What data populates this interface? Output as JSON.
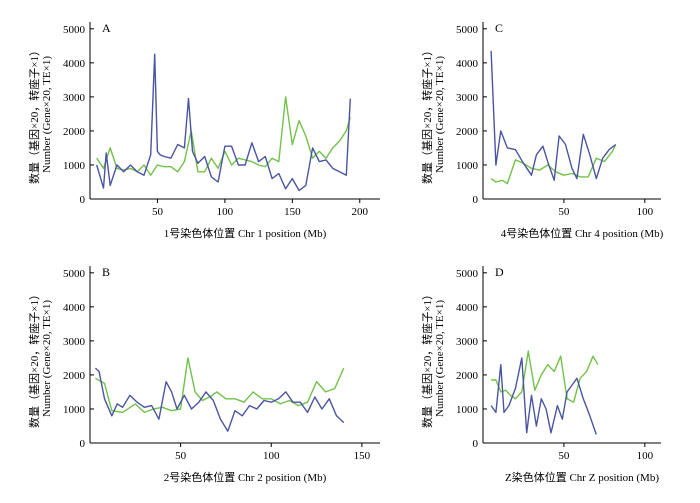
{
  "colors": {
    "genes": "#4a55a2",
    "te": "#72c14a",
    "axis": "#000000"
  },
  "chart_data": [
    {
      "type": "line",
      "panel": "A",
      "xlabel": "1号染色体位置 Chr 1 position (Mb)",
      "ylabel_lines": [
        "数量（基因×20，转座子×1）",
        "Number (Gene×20, TE×1)"
      ],
      "xlim": [
        0,
        215
      ],
      "ylim": [
        0,
        5200
      ],
      "xticks": [
        50,
        100,
        150,
        200
      ],
      "yticks": [
        0,
        1000,
        2000,
        3000,
        4000,
        5000
      ],
      "series": [
        {
          "key": "genes",
          "x": [
            5,
            10,
            12,
            15,
            20,
            25,
            30,
            35,
            40,
            45,
            48,
            50,
            52,
            55,
            60,
            65,
            70,
            73,
            76,
            80,
            85,
            90,
            95,
            100,
            105,
            110,
            115,
            120,
            125,
            130,
            135,
            140,
            145,
            150,
            155,
            160,
            165,
            170,
            175,
            180,
            185,
            190,
            193
          ],
          "y": [
            1000,
            320,
            1350,
            400,
            1000,
            800,
            1000,
            800,
            700,
            1300,
            4250,
            1400,
            1300,
            1250,
            1200,
            1600,
            1500,
            2950,
            1400,
            1050,
            1250,
            650,
            500,
            1550,
            1550,
            1000,
            1000,
            1650,
            1100,
            1250,
            600,
            750,
            300,
            600,
            250,
            400,
            1500,
            1100,
            1150,
            900,
            800,
            700,
            2950
          ]
        },
        {
          "key": "te",
          "x": [
            5,
            10,
            15,
            20,
            25,
            30,
            35,
            40,
            45,
            50,
            55,
            60,
            65,
            70,
            75,
            80,
            85,
            90,
            95,
            100,
            105,
            110,
            115,
            120,
            125,
            130,
            135,
            140,
            145,
            150,
            155,
            160,
            165,
            170,
            175,
            180,
            185,
            190,
            193
          ],
          "y": [
            1200,
            900,
            1500,
            900,
            850,
            900,
            800,
            1000,
            700,
            1000,
            950,
            950,
            800,
            1100,
            2000,
            800,
            800,
            1200,
            900,
            1400,
            1000,
            1200,
            1150,
            1100,
            1000,
            950,
            1200,
            1100,
            3000,
            1600,
            2300,
            1850,
            1200,
            1400,
            1200,
            1500,
            1700,
            2000,
            2400
          ]
        }
      ]
    },
    {
      "type": "line",
      "panel": "C",
      "xlabel": "4号染色体位置 Chr 4 position (Mb)",
      "ylabel_lines": [
        "数量（基因×20，转座子×1）",
        "Number (Gene×20, TE×1)"
      ],
      "xlim": [
        0,
        110
      ],
      "ylim": [
        0,
        5200
      ],
      "xticks": [
        50,
        100
      ],
      "yticks": [
        0,
        1000,
        2000,
        3000,
        4000,
        5000
      ],
      "series": [
        {
          "key": "genes",
          "x": [
            5,
            8,
            11,
            15,
            20,
            25,
            30,
            33,
            37,
            40,
            44,
            47,
            51,
            55,
            58,
            62,
            66,
            70,
            74,
            78,
            82
          ],
          "y": [
            4350,
            1000,
            2000,
            1500,
            1450,
            1050,
            700,
            1300,
            1550,
            1100,
            550,
            1850,
            1600,
            900,
            600,
            1900,
            1300,
            600,
            1200,
            1450,
            1600
          ]
        },
        {
          "key": "te",
          "x": [
            5,
            8,
            12,
            15,
            20,
            25,
            30,
            35,
            40,
            45,
            50,
            55,
            60,
            65,
            70,
            75,
            80,
            82
          ],
          "y": [
            600,
            500,
            550,
            450,
            1150,
            1050,
            900,
            850,
            1000,
            800,
            700,
            750,
            650,
            650,
            1200,
            1100,
            1400,
            1600
          ]
        }
      ]
    },
    {
      "type": "line",
      "panel": "B",
      "xlabel": "2号染色体位置 Chr 2 position (Mb)",
      "ylabel_lines": [
        "数量（基因×20，转座子×1）",
        "Number (Gene×20, TE×1)"
      ],
      "xlim": [
        0,
        160
      ],
      "ylim": [
        0,
        5200
      ],
      "xticks": [
        50,
        100,
        150
      ],
      "yticks": [
        0,
        1000,
        2000,
        3000,
        4000,
        5000
      ],
      "series": [
        {
          "key": "genes",
          "x": [
            3,
            5,
            8,
            12,
            15,
            18,
            22,
            26,
            30,
            34,
            38,
            42,
            45,
            48,
            52,
            56,
            60,
            64,
            68,
            72,
            76,
            80,
            84,
            88,
            92,
            96,
            100,
            104,
            108,
            112,
            116,
            120,
            124,
            128,
            132,
            136,
            140
          ],
          "y": [
            2200,
            2100,
            1300,
            800,
            1150,
            1050,
            1400,
            1200,
            1050,
            1100,
            700,
            1800,
            1500,
            1000,
            1400,
            1000,
            1200,
            1500,
            1250,
            700,
            350,
            950,
            800,
            1100,
            1000,
            1250,
            1200,
            1300,
            1500,
            1200,
            1200,
            900,
            1350,
            1000,
            1300,
            800,
            600
          ]
        },
        {
          "key": "te",
          "x": [
            3,
            8,
            12,
            18,
            25,
            30,
            35,
            40,
            45,
            50,
            54,
            58,
            62,
            66,
            70,
            75,
            80,
            85,
            90,
            95,
            100,
            105,
            110,
            115,
            120,
            125,
            130,
            135,
            140
          ],
          "y": [
            1900,
            1750,
            950,
            900,
            1150,
            900,
            1000,
            1050,
            950,
            1000,
            2500,
            1500,
            1250,
            1350,
            1500,
            1300,
            1300,
            1200,
            1500,
            1300,
            1300,
            1150,
            1250,
            1100,
            1200,
            1800,
            1500,
            1600,
            2200
          ]
        }
      ]
    },
    {
      "type": "line",
      "panel": "D",
      "xlabel": "Z染色体位置 Chr Z position (Mb)",
      "ylabel_lines": [
        "数量（基因×20，转座子×1）",
        "Number (Gene×20, TE×1)"
      ],
      "xlim": [
        0,
        110
      ],
      "ylim": [
        0,
        5200
      ],
      "xticks": [
        50,
        100
      ],
      "yticks": [
        0,
        1000,
        2000,
        3000,
        4000,
        5000
      ],
      "series": [
        {
          "key": "genes",
          "x": [
            5,
            8,
            11,
            13,
            16,
            20,
            24,
            27,
            30,
            33,
            36,
            39,
            42,
            46,
            49,
            52,
            55,
            58,
            62,
            66,
            70
          ],
          "y": [
            1100,
            900,
            2300,
            900,
            1100,
            1600,
            2500,
            300,
            1400,
            500,
            1300,
            1000,
            300,
            1100,
            700,
            1500,
            1700,
            1900,
            1300,
            800,
            250
          ]
        },
        {
          "key": "te",
          "x": [
            5,
            8,
            11,
            14,
            17,
            20,
            24,
            28,
            32,
            36,
            40,
            44,
            48,
            52,
            56,
            60,
            64,
            68,
            71
          ],
          "y": [
            1850,
            1850,
            1500,
            1550,
            1400,
            1300,
            1500,
            2700,
            1550,
            2000,
            2300,
            2100,
            2550,
            1300,
            1200,
            1900,
            2100,
            2550,
            2300
          ]
        }
      ]
    }
  ]
}
